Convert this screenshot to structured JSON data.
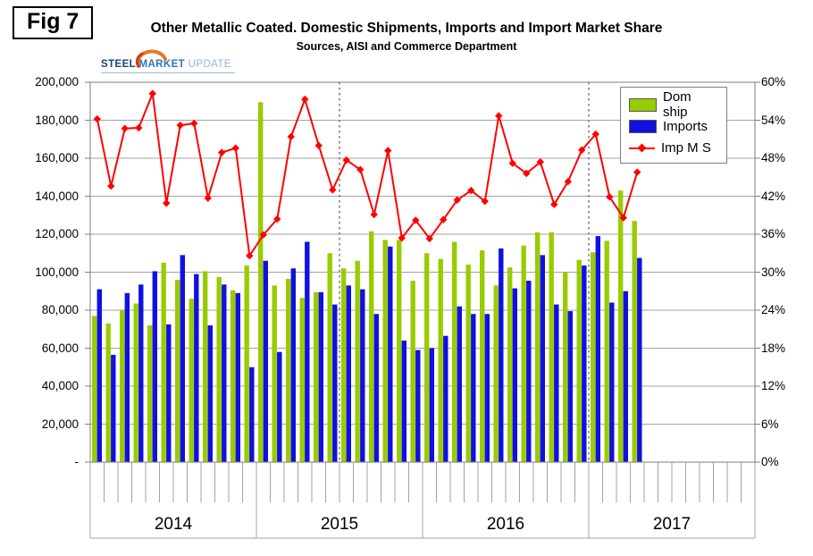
{
  "fig_label": "Fig 7",
  "title": "Other Metallic Coated. Domestic Shipments, Imports and Import Market Share",
  "subtitle": "Sources, AISI and Commerce Department",
  "logo": {
    "part1": "STEEL",
    "part2": "MARKET",
    "part3": "UPDATE",
    "swoosh_color": "#e87722"
  },
  "legend": {
    "items": [
      {
        "label": "Dom ship",
        "marker": "bar",
        "color": "#99cc00"
      },
      {
        "label": "Imports",
        "marker": "bar",
        "color": "#1010e0"
      },
      {
        "label": "Imp M S",
        "marker": "line-diamond",
        "color": "#ff0000"
      }
    ]
  },
  "colors": {
    "dom_ship": "#99cc00",
    "imports": "#1010e0",
    "imp_ms": "#ff0000",
    "grid": "#a3a3a3",
    "plot_border": "#7f7f7f",
    "reference_line": "#7f7f7f"
  },
  "chart_data": {
    "type": "bar",
    "title": "Other Metallic Coated. Domestic Shipments, Imports and Import Market Share",
    "subtitle": "Sources, AISI and Commerce Department",
    "categories": [
      "2014-01",
      "2014-02",
      "2014-03",
      "2014-04",
      "2014-05",
      "2014-06",
      "2014-07",
      "2014-08",
      "2014-09",
      "2014-10",
      "2014-11",
      "2014-12",
      "2015-01",
      "2015-02",
      "2015-03",
      "2015-04",
      "2015-05",
      "2015-06",
      "2015-07",
      "2015-08",
      "2015-09",
      "2015-10",
      "2015-11",
      "2015-12",
      "2016-01",
      "2016-02",
      "2016-03",
      "2016-04",
      "2016-05",
      "2016-06",
      "2016-07",
      "2016-08",
      "2016-09",
      "2016-10",
      "2016-11",
      "2016-12",
      "2017-01",
      "2017-02",
      "2017-03",
      "2017-04"
    ],
    "series": [
      {
        "name": "Dom ship",
        "type": "bar",
        "axis": "left",
        "color": "#99cc00",
        "values": [
          77000,
          73000,
          80000,
          83500,
          72000,
          105000,
          96000,
          86000,
          100500,
          97500,
          90500,
          103500,
          189500,
          93000,
          96500,
          86500,
          89500,
          110000,
          102000,
          106000,
          121500,
          117000,
          117000,
          95500,
          110000,
          107000,
          116000,
          104000,
          111500,
          93000,
          102500,
          114000,
          121000,
          121000,
          100000,
          106500,
          110500,
          116500,
          143000,
          127000
        ]
      },
      {
        "name": "Imports",
        "type": "bar",
        "axis": "left",
        "color": "#1010e0",
        "values": [
          91000,
          56500,
          89000,
          93500,
          100500,
          72500,
          109000,
          99000,
          72000,
          93500,
          89000,
          50000,
          106000,
          58000,
          102000,
          116000,
          89500,
          83000,
          93000,
          91000,
          78000,
          113500,
          64000,
          59000,
          60000,
          66500,
          82000,
          78000,
          78000,
          112500,
          91500,
          95500,
          109000,
          83000,
          79500,
          103500,
          119000,
          84000,
          90000,
          107500
        ]
      },
      {
        "name": "Imp M S",
        "type": "line",
        "axis": "right",
        "color": "#ff0000",
        "marker": "diamond",
        "values": [
          54.2,
          43.6,
          52.7,
          52.8,
          58.2,
          40.9,
          53.2,
          53.5,
          41.7,
          48.9,
          49.6,
          32.6,
          35.9,
          38.4,
          51.4,
          57.3,
          50.0,
          43.0,
          47.7,
          46.2,
          39.1,
          49.2,
          35.4,
          38.2,
          35.3,
          38.3,
          41.4,
          42.9,
          41.2,
          54.7,
          47.2,
          45.6,
          47.4,
          40.7,
          44.3,
          49.3,
          51.8,
          41.9,
          38.6,
          45.8
        ]
      }
    ],
    "left_axis": {
      "min": 0,
      "max": 200000,
      "step": 20000,
      "tick_labels": [
        "-",
        "20,000",
        "40,000",
        "60,000",
        "80,000",
        "100,000",
        "120,000",
        "140,000",
        "160,000",
        "180,000",
        "200,000"
      ]
    },
    "right_axis": {
      "min": 0,
      "max": 60,
      "step": 6,
      "tick_labels": [
        "0%",
        "6%",
        "12%",
        "18%",
        "24%",
        "30%",
        "36%",
        "42%",
        "48%",
        "54%",
        "60%"
      ]
    },
    "x_year_labels": [
      "2014",
      "2015",
      "2016",
      "2017"
    ],
    "axis_months": 48,
    "reference_month_indices": [
      18,
      36
    ],
    "grid": true,
    "legend_position": "top-right"
  }
}
